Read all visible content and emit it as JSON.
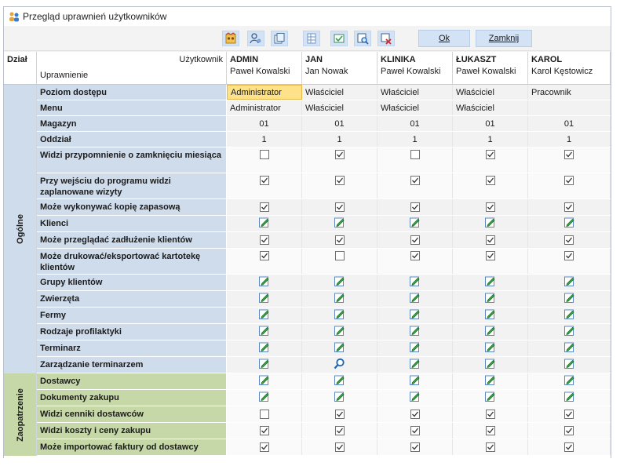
{
  "window": {
    "title": "Przegląd uprawnień użytkowników",
    "icon": "users-group-icon"
  },
  "toolbar": {
    "icons": [
      "users-icon",
      "user-settings-icon",
      "copy-icon",
      "grid-icon",
      "check-all-icon",
      "search-zoom-icon",
      "uncheck-icon"
    ],
    "ok_label": "Ok",
    "close_label": "Zamknij"
  },
  "header": {
    "dzial_label": "Dział",
    "uzytkownik_label": "Użytkownik",
    "uprawnienie_label": "Uprawnienie",
    "users": [
      {
        "login": "ADMIN",
        "name": "Paweł Kowalski"
      },
      {
        "login": "JAN",
        "name": "Jan Nowak"
      },
      {
        "login": "KLINIKA",
        "name": "Paweł Kowalski"
      },
      {
        "login": "ŁUKASZT",
        "name": "Paweł Kowalski"
      },
      {
        "login": "KAROL",
        "name": "Karol Kęstowicz"
      }
    ]
  },
  "sections": [
    {
      "label": "Ogólne",
      "color": "#cfdcec"
    },
    {
      "label": "Zaopatrzenie",
      "color": "#c7d8a8"
    }
  ],
  "rows": [
    {
      "label": "Poziom dostępu",
      "section": "og",
      "type": "text",
      "values": [
        "Administrator",
        "Właściciel",
        "Właściciel",
        "Właściciel",
        "Pracownik"
      ],
      "selected": 0
    },
    {
      "label": "Menu",
      "section": "og",
      "type": "text",
      "values": [
        "Administrator",
        "Właściciel",
        "Właściciel",
        "Właściciel",
        ""
      ]
    },
    {
      "label": "Magazyn",
      "section": "og",
      "type": "text",
      "values": [
        "01",
        "01",
        "01",
        "01",
        "01"
      ]
    },
    {
      "label": "Oddział",
      "section": "og",
      "type": "text",
      "values": [
        "1",
        "1",
        "1",
        "1",
        "1"
      ]
    },
    {
      "label": "Widzi przypomnienie o zamknięciu miesiąca",
      "section": "og",
      "type": "check",
      "values": [
        false,
        true,
        false,
        true,
        true
      ]
    },
    {
      "label": "Przy wejściu do programu widzi zaplanowane wizyty",
      "section": "og",
      "type": "check",
      "values": [
        true,
        true,
        true,
        true,
        true
      ]
    },
    {
      "label": "Może wykonywać kopię zapasową",
      "section": "og",
      "type": "check",
      "values": [
        true,
        true,
        true,
        true,
        true
      ]
    },
    {
      "label": "Klienci",
      "section": "og",
      "type": "edit",
      "values": [
        "edit",
        "edit",
        "edit",
        "edit",
        "edit"
      ]
    },
    {
      "label": "Może przeglądać zadłużenie klientów",
      "section": "og",
      "type": "check",
      "values": [
        true,
        true,
        true,
        true,
        true
      ]
    },
    {
      "label": "Może drukować/eksportować kartotekę klientów",
      "section": "og",
      "type": "check",
      "values": [
        true,
        false,
        true,
        true,
        true
      ]
    },
    {
      "label": "Grupy klientów",
      "section": "og",
      "type": "edit",
      "values": [
        "edit",
        "edit",
        "edit",
        "edit",
        "edit"
      ]
    },
    {
      "label": "Zwierzęta",
      "section": "og",
      "type": "edit",
      "values": [
        "edit",
        "edit",
        "edit",
        "edit",
        "edit"
      ]
    },
    {
      "label": "Fermy",
      "section": "og",
      "type": "edit",
      "values": [
        "edit",
        "edit",
        "edit",
        "edit",
        "edit"
      ]
    },
    {
      "label": "Rodzaje profilaktyki",
      "section": "og",
      "type": "edit",
      "values": [
        "edit",
        "edit",
        "edit",
        "edit",
        "edit"
      ]
    },
    {
      "label": "Terminarz",
      "section": "og",
      "type": "edit",
      "values": [
        "edit",
        "edit",
        "edit",
        "edit",
        "edit"
      ]
    },
    {
      "label": "Zarządzanie terminarzem",
      "section": "og",
      "type": "edit",
      "values": [
        "edit",
        "view",
        "edit",
        "edit",
        "edit"
      ]
    },
    {
      "label": "Dostawcy",
      "section": "za",
      "type": "edit",
      "values": [
        "edit",
        "edit",
        "edit",
        "edit",
        "edit"
      ]
    },
    {
      "label": "Dokumenty zakupu",
      "section": "za",
      "type": "edit",
      "values": [
        "edit",
        "edit",
        "edit",
        "edit",
        "edit"
      ]
    },
    {
      "label": "Widzi cenniki dostawców",
      "section": "za",
      "type": "check",
      "values": [
        false,
        true,
        true,
        true,
        true
      ]
    },
    {
      "label": "Widzi koszty i ceny zakupu",
      "section": "za",
      "type": "check",
      "values": [
        true,
        true,
        true,
        true,
        true
      ]
    },
    {
      "label": "Może importować faktury od dostawcy",
      "section": "za",
      "type": "check",
      "values": [
        true,
        true,
        true,
        true,
        true
      ]
    }
  ]
}
